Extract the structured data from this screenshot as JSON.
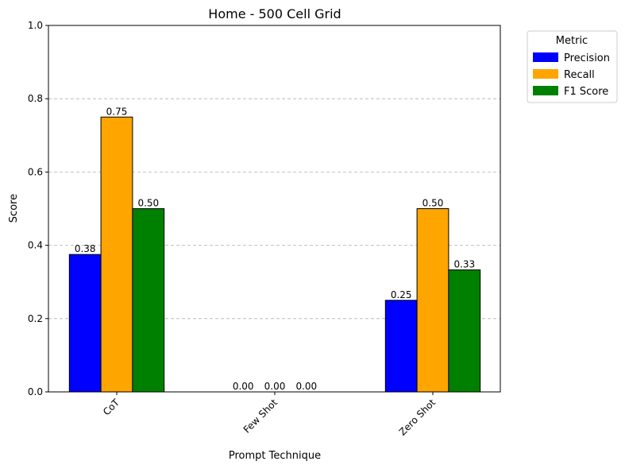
{
  "chart_data": {
    "type": "bar",
    "title": "Home - 500 Cell Grid",
    "xlabel": "Prompt Technique",
    "ylabel": "Score",
    "ylim": [
      0,
      1.0
    ],
    "yticks": [
      "0.0",
      "0.2",
      "0.4",
      "0.6",
      "0.8",
      "1.0"
    ],
    "grid": "y-dashed",
    "categories": [
      "CoT",
      "Few Shot",
      "Zero Shot"
    ],
    "series": [
      {
        "name": "Precision",
        "color": "#0000ff",
        "values": [
          0.375,
          0.0,
          0.25
        ],
        "labels": [
          "0.38",
          "0.00",
          "0.25"
        ]
      },
      {
        "name": "Recall",
        "color": "#ffa500",
        "values": [
          0.75,
          0.0,
          0.5
        ],
        "labels": [
          "0.75",
          "0.00",
          "0.50"
        ]
      },
      {
        "name": "F1 Score",
        "color": "#008000",
        "values": [
          0.5,
          0.0,
          0.333
        ],
        "labels": [
          "0.50",
          "0.00",
          "0.33"
        ]
      }
    ],
    "legend": {
      "title": "Metric",
      "placement": "outside-top-right"
    }
  }
}
